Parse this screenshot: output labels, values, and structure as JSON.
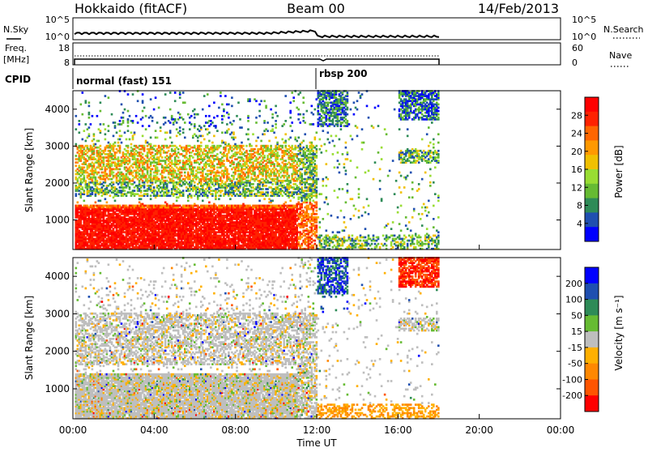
{
  "header": {
    "station": "Hokkaido (fitACF)",
    "beam": "Beam 00",
    "date": "14/Feb/2013"
  },
  "strips": {
    "nsky_label": "N.Sky",
    "nsky_ticks": [
      "10^5",
      "10^0"
    ],
    "nsearch_label": "N.Search",
    "nsearch_ticks": [
      "10^5",
      "10^0"
    ],
    "freq_label_line1": "Freq.",
    "freq_label_line2": "[MHz]",
    "freq_ticks": [
      "18",
      "8"
    ],
    "nave_label": "Nave",
    "nave_ticks": [
      "60",
      "0"
    ],
    "cpid_label": "CPID",
    "cpid_modes": [
      "normal (fast) 151",
      "rbsp 200"
    ]
  },
  "colors": {
    "power_scale": [
      "#0000ff",
      "#1f4fb0",
      "#2e8b57",
      "#66bb33",
      "#99dd33",
      "#f0c000",
      "#ff9900",
      "#ff6600",
      "#ff2200",
      "#ff0000"
    ],
    "velocity_scale": [
      "#0000ff",
      "#1f4fb0",
      "#2e8b57",
      "#66bb33",
      "#bebebe",
      "#ffb000",
      "#ff8800",
      "#ff5500",
      "#ff0000"
    ]
  },
  "chart_data": [
    {
      "type": "heatmap",
      "name": "power",
      "ylabel": "Slant Range [km]",
      "ylim": [
        200,
        4500
      ],
      "yticks": [
        "1000",
        "2000",
        "3000",
        "4000"
      ],
      "xlim": [
        0,
        24
      ],
      "colorbar_label": "Power [dB]",
      "colorbar_ticks": [
        "4",
        "8",
        "12",
        "16",
        "20",
        "24",
        "28"
      ]
    },
    {
      "type": "heatmap",
      "name": "velocity",
      "ylabel": "Slant Range [km]",
      "ylim": [
        200,
        4500
      ],
      "yticks": [
        "1000",
        "2000",
        "3000",
        "4000"
      ],
      "xlim": [
        0,
        24
      ],
      "xticks": [
        "00:00",
        "04:00",
        "08:00",
        "12:00",
        "16:00",
        "20:00",
        "00:00"
      ],
      "xlabel": "Time UT",
      "colorbar_label": "Velocity [m s⁻¹]",
      "colorbar_ticks": [
        "200",
        "100",
        "50",
        "15",
        "-15",
        "-50",
        "-100",
        "-200"
      ]
    }
  ]
}
